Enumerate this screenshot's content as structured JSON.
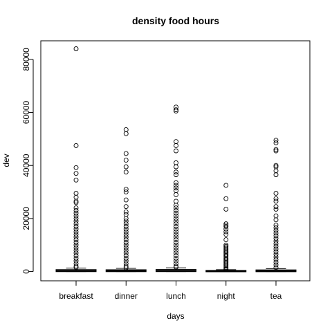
{
  "chart_data": {
    "type": "boxplot",
    "title": "density food hours",
    "xlabel": "days",
    "ylabel": "dev",
    "categories": [
      "breakfast",
      "dinner",
      "lunch",
      "night",
      "tea"
    ],
    "y_ticks": [
      "0",
      "20000",
      "40000",
      "60000",
      "80000"
    ],
    "y_tick_values": [
      0,
      20000,
      40000,
      60000,
      80000
    ],
    "ylim": [
      -3500,
      87000
    ],
    "grid": false,
    "legend": "none",
    "series": [
      {
        "name": "breakfast",
        "q1": 80,
        "median": 250,
        "q3": 600,
        "whisker_low": 0,
        "whisker_high": 1300,
        "outliers": [
          84000,
          47500,
          39200,
          37000,
          34500,
          29500,
          28000,
          26500,
          26000,
          24000,
          23000,
          22000,
          21000,
          20000,
          19000,
          18000,
          17000,
          16000,
          15000,
          14000,
          13000,
          12000,
          11000,
          10000,
          9000,
          8000,
          7000,
          6000,
          5000,
          4000,
          3000,
          2000,
          1500
        ]
      },
      {
        "name": "dinner",
        "q1": 70,
        "median": 230,
        "q3": 550,
        "whisker_low": 0,
        "whisker_high": 1200,
        "outliers": [
          53500,
          52000,
          44500,
          42000,
          39500,
          37500,
          31000,
          30000,
          27000,
          24500,
          22500,
          21500,
          20000,
          19000,
          18000,
          17000,
          16000,
          15000,
          14000,
          13000,
          12000,
          11000,
          10000,
          9000,
          8000,
          7000,
          6000,
          5000,
          4000,
          3000,
          2000,
          1400
        ]
      },
      {
        "name": "lunch",
        "q1": 90,
        "median": 280,
        "q3": 650,
        "whisker_low": 0,
        "whisker_high": 1400,
        "outliers": [
          62000,
          61000,
          60500,
          49000,
          47500,
          45500,
          41000,
          39500,
          37500,
          36500,
          33500,
          32500,
          31500,
          30500,
          29000,
          26500,
          25000,
          24000,
          23000,
          22000,
          21000,
          20000,
          19000,
          18000,
          17000,
          16000,
          15000,
          14000,
          13000,
          12000,
          11000,
          10000,
          9000,
          8000,
          7000,
          6000,
          5000,
          4000,
          3000,
          2000,
          1600
        ]
      },
      {
        "name": "night",
        "q1": 30,
        "median": 120,
        "q3": 300,
        "whisker_low": 0,
        "whisker_high": 700,
        "outliers": [
          32500,
          27500,
          23500,
          18000,
          17500,
          17000,
          16000,
          15000,
          14000,
          12000,
          10000,
          9500,
          9000,
          8500,
          8000,
          7500,
          7000,
          6500,
          6000,
          5500,
          5000,
          4500,
          4000,
          3500,
          3000,
          2500,
          2000,
          1500,
          1000,
          800
        ]
      },
      {
        "name": "tea",
        "q1": 60,
        "median": 200,
        "q3": 500,
        "whisker_low": 0,
        "whisker_high": 1100,
        "outliers": [
          49500,
          48500,
          46000,
          45500,
          40000,
          39500,
          38000,
          36500,
          29500,
          27500,
          26500,
          24500,
          23500,
          21000,
          19500,
          17500,
          16500,
          15500,
          14500,
          13500,
          12500,
          11500,
          10500,
          9500,
          8500,
          7500,
          6500,
          5500,
          4500,
          3500,
          2500,
          1500
        ]
      }
    ]
  }
}
